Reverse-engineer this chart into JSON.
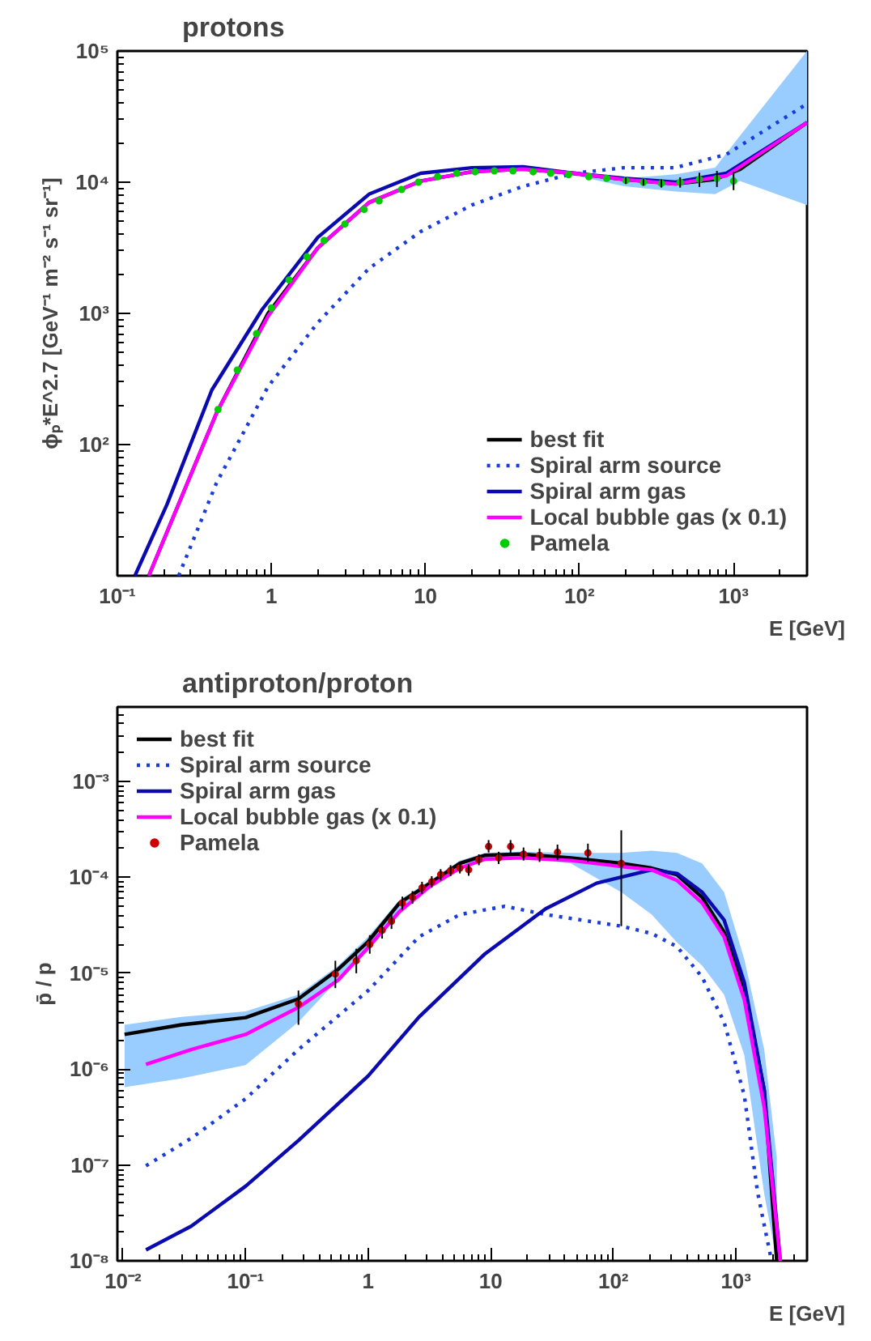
{
  "chart_data": [
    {
      "type": "line",
      "title": "protons",
      "xlabel": "E [GeV]",
      "ylabel": "ϕₚ*E^2.7 [GeV⁻¹ m⁻² s⁻¹ sr⁻¹]",
      "log": "xy",
      "grid": false,
      "legend": "bottom right",
      "xlim": [
        0.1,
        3000
      ],
      "ylim": [
        10,
        100000
      ],
      "xticks": [
        {
          "value": 0.1,
          "label": "10⁻¹"
        },
        1,
        10,
        {
          "value": 100,
          "label": "10²"
        },
        {
          "value": 1000,
          "label": "10³"
        }
      ],
      "yticks": [
        {
          "value": 100,
          "label": "10²"
        },
        {
          "value": 1000,
          "label": "10³"
        },
        {
          "value": 10000,
          "label": "10⁴"
        },
        {
          "value": 100000,
          "label": "10⁵"
        }
      ],
      "series": [
        {
          "name": "best fit",
          "color": "#000000",
          "line_style": "solid",
          "x": [
            0.16,
            0.44,
            0.95,
            2.0,
            4.3,
            9.3,
            20,
            43,
            92,
            195,
            420,
            760,
            1100,
            3000
          ],
          "values": [
            10,
            174,
            1000,
            3160,
            7000,
            10200,
            12000,
            12600,
            11700,
            10500,
            9700,
            10500,
            12500,
            28500
          ],
          "lower": [
            10,
            174,
            1000,
            3160,
            7000,
            10200,
            12000,
            12400,
            11300,
            9300,
            8500,
            8100,
            10200,
            6700
          ],
          "upper": [
            10,
            174,
            1000,
            3160,
            7000,
            10200,
            12000,
            12800,
            12000,
            10700,
            11500,
            12900,
            22600,
            100000
          ]
        },
        {
          "name": "Spiral arm source",
          "color": "#1a3cd8",
          "line_style": "dotted",
          "x": [
            0.25,
            0.44,
            0.95,
            2.0,
            4.3,
            9.3,
            20,
            43,
            92,
            195,
            420,
            900,
            3000
          ],
          "values": [
            10,
            51,
            276,
            850,
            2200,
            4200,
            6700,
            9300,
            11700,
            12900,
            12900,
            16300,
            39600
          ]
        },
        {
          "name": "Spiral arm gas",
          "color": "#0a0ab0",
          "line_style": "solid",
          "x": [
            0.13,
            0.21,
            0.41,
            0.87,
            2.0,
            4.3,
            9.3,
            20,
            43,
            92,
            195,
            420,
            900,
            3000
          ],
          "values": [
            10,
            35,
            260,
            1070,
            3800,
            8100,
            11700,
            12900,
            13100,
            11700,
            10700,
            10000,
            11700,
            28500
          ]
        },
        {
          "name": "Local bubble gas (x 0.1)",
          "color": "#ff00ff",
          "line_style": "solid",
          "x": [
            0.16,
            0.44,
            0.95,
            2.0,
            4.3,
            9.3,
            20,
            43,
            92,
            195,
            420,
            900,
            3000
          ],
          "values": [
            10,
            174,
            950,
            3160,
            7000,
            10200,
            12000,
            12600,
            11700,
            10500,
            9700,
            11200,
            28500
          ]
        },
        {
          "name": "Pamela",
          "type": "scatter",
          "marker": "circle",
          "color": "#00cc00",
          "x": [
            0.45,
            0.6,
            0.8,
            1.0,
            1.3,
            1.7,
            2.2,
            3,
            4,
            5,
            7,
            9,
            12,
            16,
            21,
            28,
            37,
            50,
            65,
            85,
            115,
            150,
            200,
            260,
            340,
            450,
            600,
            780,
            1000
          ],
          "values": [
            185,
            370,
            700,
            1100,
            1800,
            2700,
            3600,
            4800,
            6200,
            7200,
            8800,
            10000,
            11000,
            11700,
            12000,
            12200,
            12200,
            12000,
            11700,
            11400,
            11000,
            10700,
            10300,
            10000,
            9800,
            10000,
            10500,
            10700,
            10200
          ],
          "errors": [
            null,
            null,
            null,
            null,
            null,
            null,
            null,
            null,
            null,
            null,
            null,
            null,
            null,
            null,
            null,
            null,
            null,
            null,
            null,
            null,
            null,
            null,
            600,
            600,
            700,
            900,
            1300,
            1500,
            [
              8700,
              12000
            ]
          ]
        }
      ]
    },
    {
      "type": "line",
      "title": "antiproton/proton",
      "xlabel": "E [GeV]",
      "ylabel": "p̄ / p",
      "log": "xy",
      "grid": false,
      "legend": "top left",
      "xlim": [
        0.009,
        3800
      ],
      "ylim": [
        1e-08,
        0.006
      ],
      "xticks": [
        {
          "value": 0.01,
          "label": "10⁻²"
        },
        {
          "value": 0.1,
          "label": "10⁻¹"
        },
        1,
        10,
        {
          "value": 100,
          "label": "10²"
        },
        {
          "value": 1000,
          "label": "10³"
        }
      ],
      "yticks": [
        {
          "value": 1e-08,
          "label": "10⁻⁸"
        },
        {
          "value": 1e-07,
          "label": "10⁻⁷"
        },
        {
          "value": 1e-06,
          "label": "10⁻⁶"
        },
        {
          "value": 1e-05,
          "label": "10⁻⁵"
        },
        {
          "value": 0.0001,
          "label": "10⁻⁴"
        },
        {
          "value": 0.001,
          "label": "10⁻³"
        }
      ],
      "series": [
        {
          "name": "best fit",
          "color": "#000000",
          "line_style": "solid",
          "x": [
            0.0103,
            0.03,
            0.1,
            0.27,
            0.57,
            1,
            1.8,
            3.2,
            5.6,
            9,
            17.6,
            45,
            116,
            205,
            330,
            530,
            800,
            1170,
            1700,
            2150
          ],
          "values": [
            2.3e-06,
            2.9e-06,
            3.45e-06,
            5.4e-06,
            1.1e-05,
            2.14e-05,
            5.4e-05,
            8.7e-05,
            0.00014,
            0.00017,
            0.000175,
            0.00016,
            0.00014,
            0.000125,
            0.000107,
            6.2e-05,
            2.7e-05,
            7e-06,
            6e-07,
            1e-08
          ],
          "lower": [
            6.5e-07,
            8e-07,
            1.1e-06,
            3.1e-06,
            8.6e-06,
            1.7e-05,
            4.6e-05,
            7.8e-05,
            0.00013,
            0.00016,
            0.00016,
            0.00014,
            7e-05,
            4.1e-05,
            2.1e-05,
            1.2e-05,
            6e-06,
            1.4e-06,
            5e-08,
            1e-08
          ],
          "upper": [
            2.9e-06,
            3.5e-06,
            4e-06,
            6e-06,
            1.2e-05,
            2.4e-05,
            5.8e-05,
            9.3e-05,
            0.00015,
            0.00018,
            0.000185,
            0.00018,
            0.00018,
            0.00019,
            0.00018,
            0.00014,
            7e-05,
            1.4e-05,
            1.6e-06,
            1.2e-07
          ]
        },
        {
          "name": "Spiral arm source",
          "color": "#1a3cd8",
          "line_style": "dotted",
          "x": [
            0.0154,
            0.036,
            0.1,
            0.27,
            1,
            2.6,
            5.6,
            13,
            28,
            116,
            205,
            330,
            530,
            800,
            1170,
            1500,
            1950
          ],
          "values": [
            9.8e-08,
            1.9e-07,
            4.9e-07,
            1.6e-06,
            6.6e-06,
            2.4e-05,
            4.1e-05,
            5e-05,
            4.1e-05,
            3.1e-05,
            2.6e-05,
            1.9e-05,
            9.1e-06,
            3.1e-06,
            5.3e-07,
            5.2e-08,
            1e-08
          ]
        },
        {
          "name": "Spiral arm gas",
          "color": "#0a0ab0",
          "line_style": "solid",
          "x": [
            0.0154,
            0.036,
            0.1,
            0.27,
            1,
            2.6,
            9,
            28,
            73,
            205,
            330,
            530,
            800,
            1170,
            1700,
            2300
          ],
          "values": [
            1.3e-08,
            2.3e-08,
            6e-08,
            1.8e-07,
            8.5e-07,
            3.5e-06,
            1.6e-05,
            4.7e-05,
            8.7e-05,
            0.00012,
            0.00011,
            7e-05,
            3.6e-05,
            8e-06,
            6e-07,
            1e-08
          ]
        },
        {
          "name": "Local bubble gas (x 0.1)",
          "color": "#ff00ff",
          "line_style": "solid",
          "x": [
            0.0154,
            0.036,
            0.1,
            0.27,
            0.57,
            1,
            1.8,
            3.2,
            5.6,
            9,
            17.6,
            45,
            116,
            205,
            330,
            530,
            800,
            1170,
            1700,
            2300
          ],
          "values": [
            1.12e-06,
            1.6e-06,
            2.3e-06,
            4.4e-06,
            8.5e-06,
            1.86e-05,
            4.4e-05,
            8.1e-05,
            0.000125,
            0.000155,
            0.00016,
            0.00015,
            0.00013,
            0.00012,
            9.3e-05,
            5.4e-05,
            2.4e-05,
            5.3e-06,
            4e-07,
            1e-08
          ]
        },
        {
          "name": "Pamela",
          "type": "scatter",
          "marker": "circle",
          "color": "#cc0000",
          "x": [
            0.27,
            0.54,
            0.8,
            1.03,
            1.3,
            1.55,
            1.9,
            2.3,
            2.75,
            3.3,
            3.9,
            4.7,
            5.6,
            6.6,
            8.0,
            9.6,
            11.6,
            14.5,
            18.5,
            25,
            35,
            62,
            116
          ],
          "values": [
            4.8e-06,
            9.8e-06,
            1.35e-05,
            2e-05,
            2.8e-05,
            3.5e-05,
            5.4e-05,
            6.2e-05,
            7.8e-05,
            9e-05,
            0.000107,
            0.000118,
            0.000125,
            0.00012,
            0.000153,
            0.00021,
            0.00016,
            0.00021,
            0.000175,
            0.00017,
            0.000183,
            0.00018,
            0.00014
          ],
          "errors": [
            [
              2.9e-06,
              6.6e-06
            ],
            [
              7e-06,
              1.35e-05
            ],
            [
              1e-05,
              1.8e-05
            ],
            [
              1.6e-05,
              2.5e-05
            ],
            [
              2.3e-05,
              3.4e-05
            ],
            [
              2.9e-05,
              4.2e-05
            ],
            [
              4.6e-05,
              6.3e-05
            ],
            [
              5.3e-05,
              7.2e-05
            ],
            [
              6.7e-05,
              9e-05
            ],
            [
              7.8e-05,
              0.000103
            ],
            [
              9.3e-05,
              0.000122
            ],
            [
              0.000103,
              0.000134
            ],
            [
              0.00011,
              0.000142
            ],
            [
              0.000104,
              0.000137
            ],
            [
              0.000134,
              0.000174
            ],
            [
              0.000182,
              0.000245
            ],
            [
              0.000138,
              0.000185
            ],
            [
              0.00018,
              0.000245
            ],
            [
              0.00015,
              0.000205
            ],
            [
              0.000145,
              0.0002
            ],
            [
              0.000152,
              0.00022
            ],
            [
              0.000145,
              0.000225
            ],
            [
              3.1e-05,
              0.00031
            ]
          ]
        }
      ]
    }
  ]
}
